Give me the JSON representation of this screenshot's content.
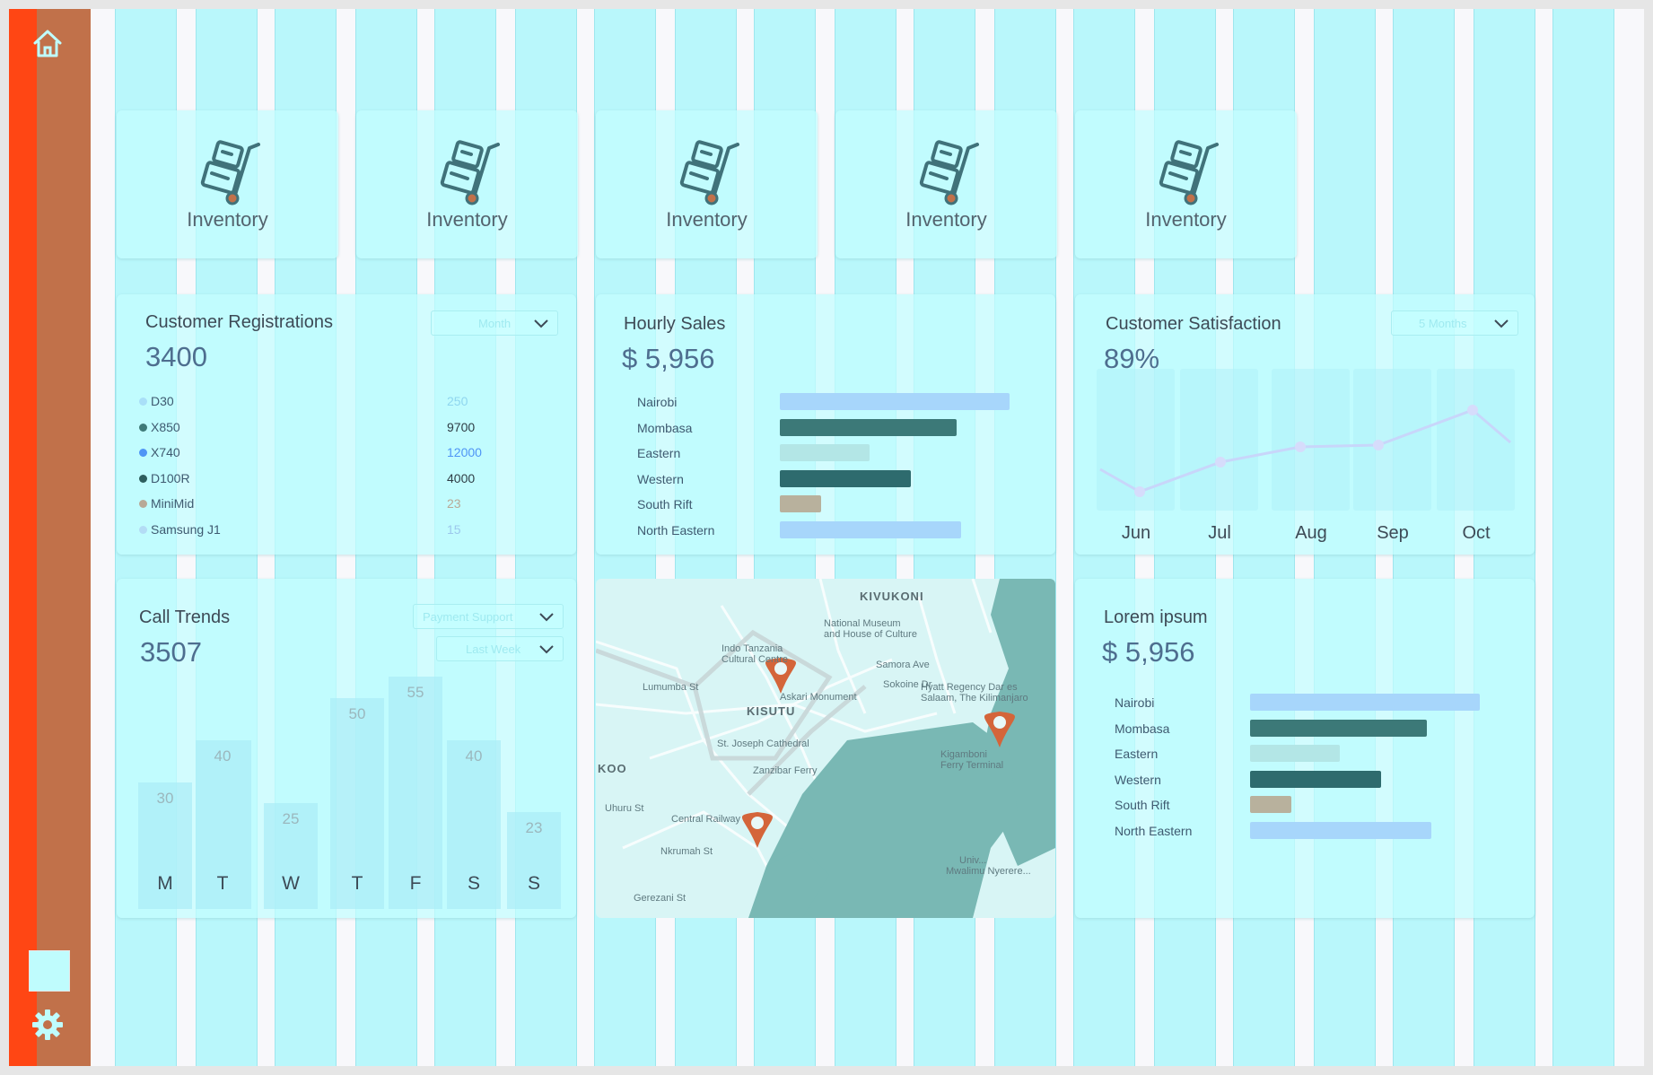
{
  "inventory_cards": [
    {
      "label": "Inventory"
    },
    {
      "label": "Inventory"
    },
    {
      "label": "Inventory"
    },
    {
      "label": "Inventory"
    },
    {
      "label": "Inventory"
    }
  ],
  "registrations": {
    "title": "Customer Registrations",
    "value": "3400",
    "dropdown": "Month",
    "rows": [
      {
        "name": "D30",
        "value": "250",
        "dot": "#a9dff8",
        "value_color": "#8fd6ef"
      },
      {
        "name": "X850",
        "value": "9700",
        "dot": "#3f7a78",
        "value_color": "#2e3d45"
      },
      {
        "name": "X740",
        "value": "12000",
        "dot": "#4f95f5",
        "value_color": "#4f95f5"
      },
      {
        "name": "D100R",
        "value": "4000",
        "dot": "#2d5e5e",
        "value_color": "#2e3d45"
      },
      {
        "name": "MiniMid",
        "value": "23",
        "dot": "#b8a997",
        "value_color": "#b8a997"
      },
      {
        "name": "Samsung J1",
        "value": "15",
        "dot": "#b3dcf5",
        "value_color": "#9cc8ec"
      }
    ]
  },
  "hourly_sales": {
    "title": "Hourly Sales",
    "value": "$ 5,956",
    "rows": [
      {
        "label": "Nairobi",
        "fraction": 1.0,
        "color": "#a7d6fb"
      },
      {
        "label": "Mombasa",
        "fraction": 0.77,
        "color": "#3c7978"
      },
      {
        "label": "Eastern",
        "fraction": 0.39,
        "color": "#b3e6e6"
      },
      {
        "label": "Western",
        "fraction": 0.57,
        "color": "#2e6b6e"
      },
      {
        "label": "South Rift",
        "fraction": 0.18,
        "color": "#b8b19d"
      },
      {
        "label": "North Eastern",
        "fraction": 0.79,
        "color": "#a7d6fb"
      }
    ]
  },
  "satisfaction": {
    "title": "Customer Satisfaction",
    "value": "89%",
    "dropdown": "5 Months",
    "months": [
      "Jun",
      "Jul",
      "Aug",
      "Sep",
      "Oct"
    ],
    "line_color": "#c8d6fa",
    "point_color": "#d6dcfb"
  },
  "call_trends": {
    "title": "Call Trends",
    "value": "3507",
    "dropdown1": "Payment Support",
    "dropdown2": "Last Week",
    "days": [
      "M",
      "T",
      "W",
      "T",
      "F",
      "S",
      "S"
    ],
    "values": [
      30,
      40,
      25,
      50,
      55,
      40,
      23
    ]
  },
  "map": {
    "labels": [
      {
        "text": "KIVUKONI",
        "bold": true
      },
      {
        "text": "National Museum",
        "bold": false
      },
      {
        "text": "and House of Culture",
        "bold": false
      },
      {
        "text": "Indo Tanzania",
        "bold": false
      },
      {
        "text": "Cultural Centre",
        "bold": false
      },
      {
        "text": "Askari Monument",
        "bold": false
      },
      {
        "text": "KISUTU",
        "bold": true
      },
      {
        "text": "Samora Ave",
        "bold": false
      },
      {
        "text": "Sokoine Dr",
        "bold": false
      },
      {
        "text": "Hyatt Regency Dar es",
        "bold": false
      },
      {
        "text": "Salaam, The Kilimanjaro",
        "bold": false
      },
      {
        "text": "St. Joseph Cathedral",
        "bold": false
      },
      {
        "text": "Zanzibar Ferry",
        "bold": false
      },
      {
        "text": "Kigamboni",
        "bold": false
      },
      {
        "text": "Ferry Terminal",
        "bold": false
      },
      {
        "text": "KOO",
        "bold": true
      },
      {
        "text": "Central Railway",
        "bold": false
      },
      {
        "text": "Nkrumah St",
        "bold": false
      },
      {
        "text": "Lumumba St",
        "bold": false
      },
      {
        "text": "Uhuru St",
        "bold": false
      },
      {
        "text": "Gerezani St",
        "bold": false
      },
      {
        "text": "Mwalimu Nyerere...",
        "bold": false
      },
      {
        "text": "Univ...",
        "bold": false
      }
    ],
    "water_color": "#79b8b4",
    "marker_color": "#d4653a"
  },
  "lorem": {
    "title": "Lorem ipsum",
    "value": "$ 5,956",
    "rows": [
      {
        "label": "Nairobi",
        "fraction": 1.0,
        "color": "#a7d6fb"
      },
      {
        "label": "Mombasa",
        "fraction": 0.77,
        "color": "#3c7978"
      },
      {
        "label": "Eastern",
        "fraction": 0.39,
        "color": "#b3e6e6"
      },
      {
        "label": "Western",
        "fraction": 0.57,
        "color": "#2e6b6e"
      },
      {
        "label": "South Rift",
        "fraction": 0.18,
        "color": "#b8b19d"
      },
      {
        "label": "North Eastern",
        "fraction": 0.79,
        "color": "#a7d6fb"
      }
    ]
  },
  "colors": {
    "sidebar_accent": "#ff4614",
    "sidebar": "#c1714a",
    "card_bg": "#c3feff",
    "icon": "#40727a"
  },
  "icons": {
    "home": "home-icon",
    "settings": "gear-icon",
    "inventory": "hand-truck-icon"
  }
}
